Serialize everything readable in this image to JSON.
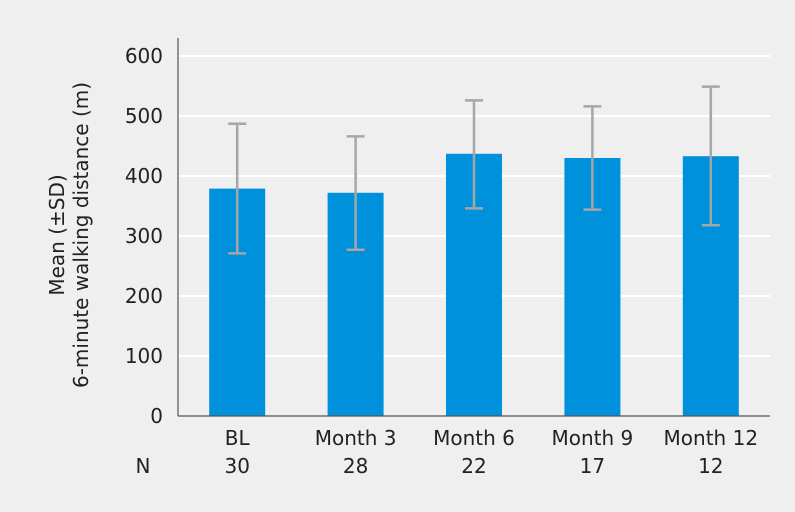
{
  "chart_data": {
    "type": "bar",
    "categories": [
      "BL",
      "Month 3",
      "Month 6",
      "Month 9",
      "Month 12"
    ],
    "n_label": "N",
    "n_values": [
      "30",
      "28",
      "22",
      "17",
      "12"
    ],
    "values": [
      379,
      372,
      437,
      430,
      433
    ],
    "error_low": [
      271,
      277,
      346,
      344,
      318
    ],
    "error_high": [
      487,
      466,
      526,
      516,
      549
    ],
    "ylabel_line1": "Mean (±SD)",
    "ylabel_line2": "6-minute walking distance (m)",
    "ylim": [
      0,
      600
    ],
    "yticks": [
      "0",
      "100",
      "200",
      "300",
      "400",
      "500",
      "600"
    ],
    "grid": true,
    "colors": {
      "bar": "#0091dc",
      "error_bar": "#a6a6a6",
      "grid": "#ffffff",
      "background": "#efefef",
      "axis": "#555555"
    }
  }
}
